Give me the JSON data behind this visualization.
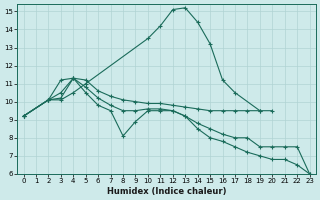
{
  "xlabel": "Humidex (Indice chaleur)",
  "xlim": [
    -0.5,
    23.5
  ],
  "ylim": [
    6,
    15.4
  ],
  "yticks": [
    6,
    7,
    8,
    9,
    10,
    11,
    12,
    13,
    14,
    15
  ],
  "xticks": [
    0,
    1,
    2,
    3,
    4,
    5,
    6,
    7,
    8,
    9,
    10,
    11,
    12,
    13,
    14,
    15,
    16,
    17,
    18,
    19,
    20,
    21,
    22,
    23
  ],
  "line_color": "#1a6b5a",
  "bg_color": "#ceeaea",
  "grid_color": "#b0d4d4",
  "lines": [
    {
      "x": [
        0,
        2,
        3,
        4,
        5,
        10,
        11,
        12,
        13,
        14,
        15,
        16,
        17,
        19
      ],
      "y": [
        9.2,
        10.1,
        10.1,
        10.5,
        11.0,
        13.5,
        14.2,
        15.1,
        15.2,
        14.4,
        13.2,
        11.2,
        10.5,
        9.5
      ]
    },
    {
      "x": [
        0,
        2,
        3,
        4,
        5,
        6,
        7,
        8,
        9,
        10,
        11,
        12,
        13,
        14,
        15,
        16,
        17,
        18,
        19,
        20
      ],
      "y": [
        9.2,
        10.1,
        10.2,
        11.3,
        11.2,
        10.6,
        10.3,
        10.1,
        10.0,
        9.9,
        9.9,
        9.8,
        9.7,
        9.6,
        9.5,
        9.5,
        9.5,
        9.5,
        9.5,
        9.5
      ]
    },
    {
      "x": [
        0,
        2,
        3,
        4,
        5,
        6,
        7,
        8,
        9,
        10,
        11,
        12,
        13,
        14,
        15,
        16,
        17,
        18,
        19,
        20,
        21,
        22,
        23
      ],
      "y": [
        9.2,
        10.1,
        10.5,
        11.3,
        10.8,
        10.2,
        9.8,
        9.5,
        9.5,
        9.6,
        9.6,
        9.5,
        9.2,
        8.8,
        8.5,
        8.2,
        8.0,
        8.0,
        7.5,
        7.5,
        7.5,
        7.5,
        6.0
      ]
    },
    {
      "x": [
        0,
        2,
        3,
        4,
        5,
        6,
        7,
        8,
        9,
        10,
        11,
        12,
        13,
        14,
        15,
        16,
        17,
        18,
        19,
        20,
        21,
        22,
        23
      ],
      "y": [
        9.2,
        10.1,
        11.2,
        11.3,
        10.5,
        9.8,
        9.5,
        8.1,
        8.9,
        9.5,
        9.5,
        9.5,
        9.2,
        8.5,
        8.0,
        7.8,
        7.5,
        7.2,
        7.0,
        6.8,
        6.8,
        6.5,
        6.0
      ]
    }
  ]
}
